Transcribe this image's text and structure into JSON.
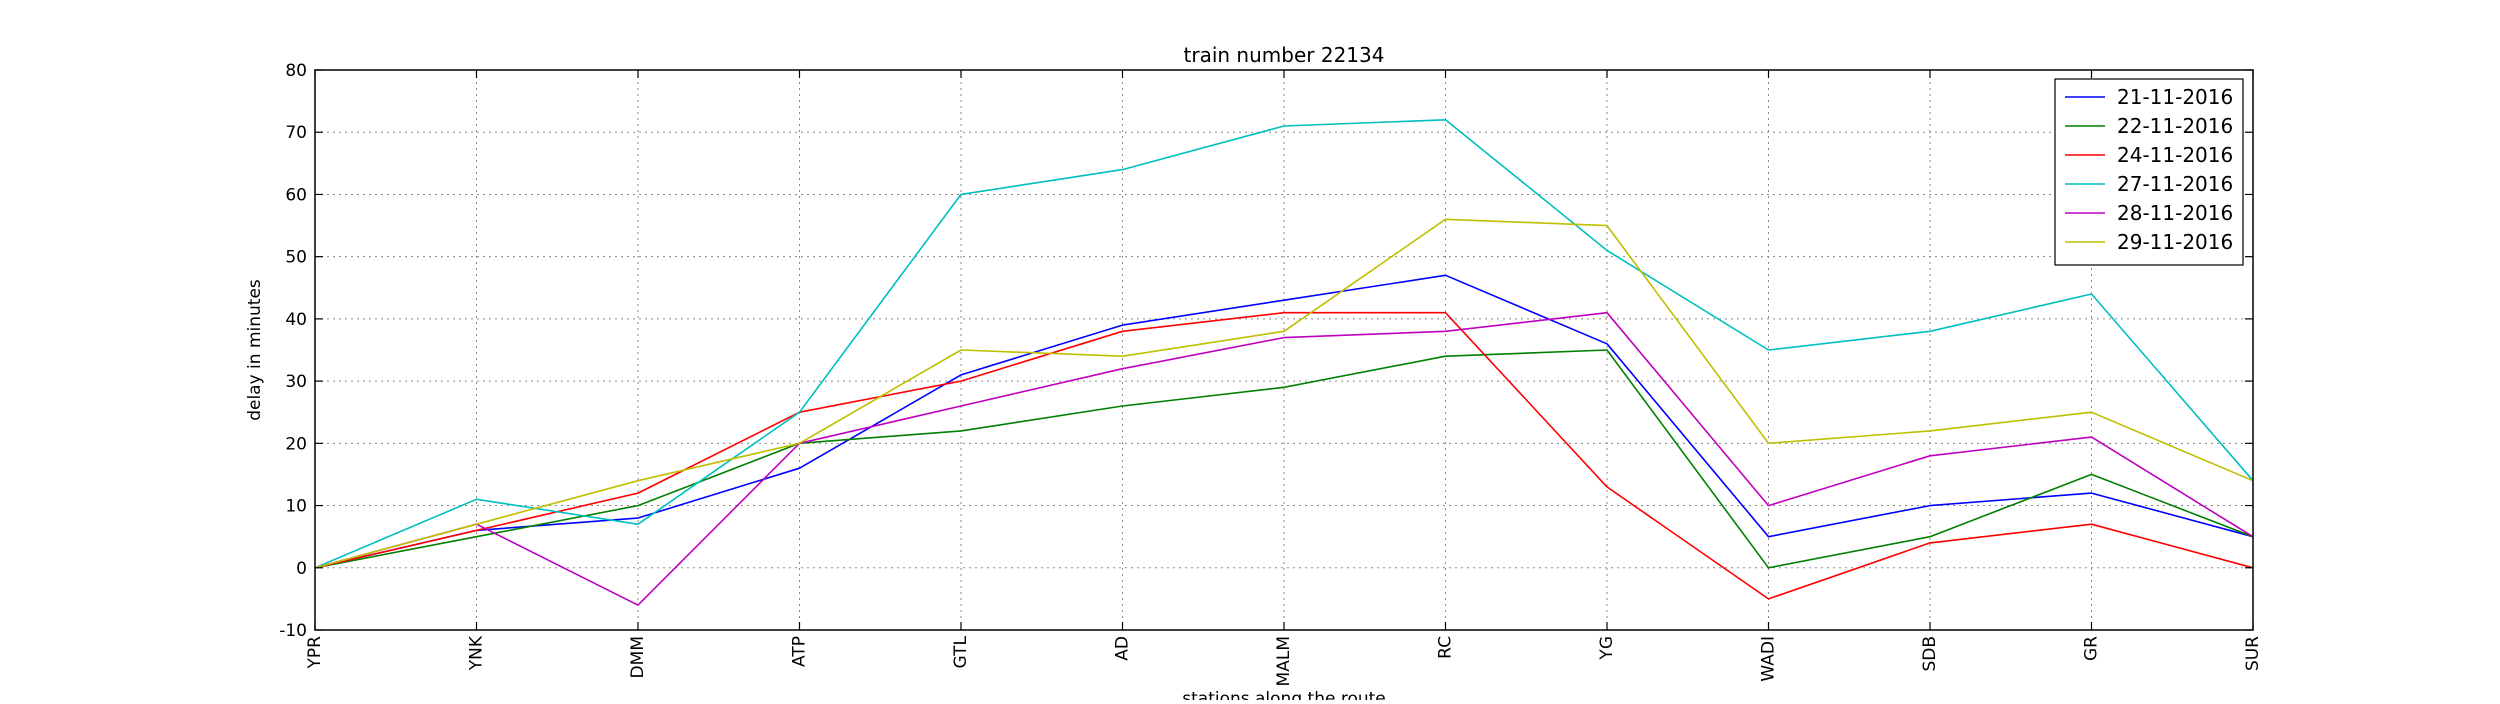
{
  "chart_data": {
    "type": "line",
    "title": "train number 22134",
    "xlabel": "stations along the route",
    "ylabel": "delay in minutes",
    "categories": [
      "YPR",
      "YNK",
      "DMM",
      "ATP",
      "GTL",
      "AD",
      "MALM",
      "RC",
      "YG",
      "WADI",
      "SDB",
      "GR",
      "SUR"
    ],
    "ylim": [
      -10,
      80
    ],
    "yticks": [
      -10,
      0,
      10,
      20,
      30,
      40,
      50,
      60,
      70,
      80
    ],
    "grid": true,
    "legend_position": "top-right",
    "series": [
      {
        "name": "21-11-2016",
        "color": "#0000ff",
        "values": [
          0,
          6,
          8,
          16,
          31,
          39,
          43,
          47,
          36,
          5,
          10,
          12,
          5
        ]
      },
      {
        "name": "22-11-2016",
        "color": "#008000",
        "values": [
          0,
          5,
          10,
          20,
          22,
          26,
          29,
          34,
          35,
          0,
          5,
          15,
          5
        ]
      },
      {
        "name": "24-11-2016",
        "color": "#ff0000",
        "values": [
          0,
          6,
          12,
          25,
          30,
          38,
          41,
          41,
          13,
          -5,
          4,
          7,
          0
        ]
      },
      {
        "name": "27-11-2016",
        "color": "#00bfbf",
        "values": [
          0,
          11,
          7,
          25,
          60,
          64,
          71,
          72,
          51,
          35,
          38,
          44,
          14
        ]
      },
      {
        "name": "28-11-2016",
        "color": "#bf00bf",
        "values": [
          0,
          7,
          -6,
          20,
          26,
          32,
          37,
          38,
          41,
          10,
          18,
          21,
          5
        ]
      },
      {
        "name": "29-11-2016",
        "color": "#bfbf00",
        "values": [
          0,
          7,
          14,
          20,
          35,
          34,
          38,
          56,
          55,
          20,
          22,
          25,
          14
        ]
      }
    ]
  }
}
